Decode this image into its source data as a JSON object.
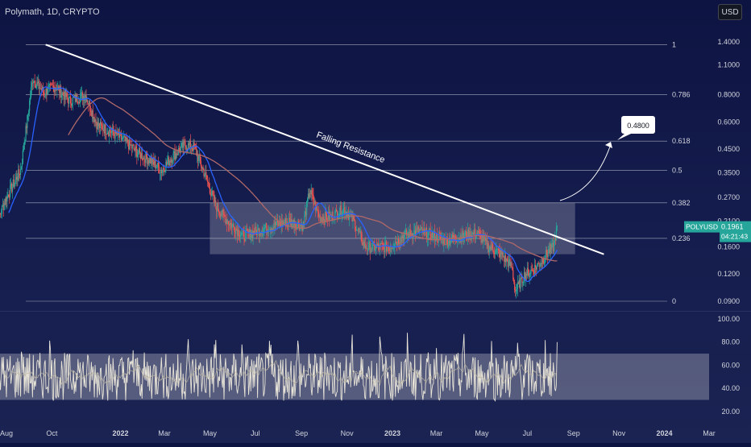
{
  "symbol": {
    "title": "Polymath, 1D, CRYPTO"
  },
  "currency_button": "USD",
  "price_label": {
    "ticker": "POLYUSD",
    "price": "0.1961",
    "countdown": "04:21:43"
  },
  "annotations": {
    "trendline_label": "Falling Resistance",
    "target_label": "0.4800"
  },
  "colors": {
    "background_top": "#0e1442",
    "background_bottom": "#1a2352",
    "candle_up": "#26a69a",
    "candle_down": "#ef5350",
    "fast_ma": "#2962ff",
    "slow_ma": "#b06868",
    "trendline": "#ffffff",
    "rsi_line": "#e8e4d8",
    "price_badge": "#26a69a"
  },
  "chart_data": [
    {
      "type": "candlestick",
      "scale": "log",
      "x_axis_ticks": [
        "Aug",
        "Oct",
        "2022",
        "Mar",
        "May",
        "Jul",
        "Sep",
        "Nov",
        "2023",
        "Mar",
        "May",
        "Jul",
        "Sep",
        "Nov",
        "2024",
        "Mar"
      ],
      "y_axis_ticks": [
        "1.4000",
        "1.1000",
        "0.8000",
        "0.6000",
        "0.4500",
        "0.3500",
        "0.2700",
        "0.2100",
        "0.1600",
        "0.1200",
        "0.0900"
      ],
      "fib_levels": [
        {
          "label": "1",
          "price": 1.36
        },
        {
          "label": "0.786",
          "price": 0.8
        },
        {
          "label": "0.618",
          "price": 0.49
        },
        {
          "label": "0.5",
          "price": 0.36
        },
        {
          "label": "0.382",
          "price": 0.255
        },
        {
          "label": "0.236",
          "price": 0.175
        },
        {
          "label": "0",
          "price": 0.09
        }
      ],
      "range_box": {
        "top": 0.255,
        "bottom": 0.148,
        "from": "2022-05",
        "to": "2023-09"
      },
      "trendline": {
        "from": [
          "2021-09",
          1.36
        ],
        "to": [
          "2023-10",
          0.148
        ]
      },
      "target": {
        "label": "0.4800",
        "price": 0.48
      },
      "last_price": 0.1961,
      "series_points": [
        [
          "2021-07-15",
          0.19
        ],
        [
          "2021-08-01",
          0.27
        ],
        [
          "2021-08-20",
          0.36
        ],
        [
          "2021-08-28",
          0.58
        ],
        [
          "2021-09-05",
          0.95
        ],
        [
          "2021-09-20",
          0.82
        ],
        [
          "2021-10-05",
          0.88
        ],
        [
          "2021-10-25",
          0.75
        ],
        [
          "2021-11-15",
          0.8
        ],
        [
          "2021-12-01",
          0.58
        ],
        [
          "2021-12-20",
          0.54
        ],
        [
          "2022-01-10",
          0.48
        ],
        [
          "2022-01-25",
          0.43
        ],
        [
          "2022-02-10",
          0.4
        ],
        [
          "2022-02-25",
          0.36
        ],
        [
          "2022-03-10",
          0.41
        ],
        [
          "2022-03-28",
          0.47
        ],
        [
          "2022-04-10",
          0.46
        ],
        [
          "2022-04-25",
          0.34
        ],
        [
          "2022-05-08",
          0.25
        ],
        [
          "2022-05-25",
          0.21
        ],
        [
          "2022-06-15",
          0.18
        ],
        [
          "2022-07-05",
          0.19
        ],
        [
          "2022-07-25",
          0.2
        ],
        [
          "2022-08-15",
          0.21
        ],
        [
          "2022-09-03",
          0.2
        ],
        [
          "2022-09-12",
          0.29
        ],
        [
          "2022-09-25",
          0.22
        ],
        [
          "2022-10-10",
          0.22
        ],
        [
          "2022-10-28",
          0.24
        ],
        [
          "2022-11-10",
          0.21
        ],
        [
          "2022-11-25",
          0.16
        ],
        [
          "2022-12-10",
          0.16
        ],
        [
          "2022-12-28",
          0.16
        ],
        [
          "2023-01-15",
          0.18
        ],
        [
          "2023-02-05",
          0.19
        ],
        [
          "2023-02-25",
          0.18
        ],
        [
          "2023-03-15",
          0.17
        ],
        [
          "2023-04-05",
          0.18
        ],
        [
          "2023-04-25",
          0.185
        ],
        [
          "2023-05-10",
          0.16
        ],
        [
          "2023-05-25",
          0.15
        ],
        [
          "2023-06-10",
          0.13
        ],
        [
          "2023-06-15",
          0.1
        ],
        [
          "2023-06-28",
          0.12
        ],
        [
          "2023-07-08",
          0.125
        ],
        [
          "2023-07-18",
          0.135
        ],
        [
          "2023-07-28",
          0.15
        ],
        [
          "2023-08-05",
          0.16
        ],
        [
          "2023-08-10",
          0.1961
        ]
      ]
    },
    {
      "type": "line",
      "name": "RSI",
      "y_axis_ticks": [
        "100.00",
        "80.00",
        "60.00",
        "40.00",
        "20.00"
      ],
      "ylim": [
        15,
        100
      ],
      "band": [
        30,
        70
      ],
      "last_value": 80
    }
  ]
}
